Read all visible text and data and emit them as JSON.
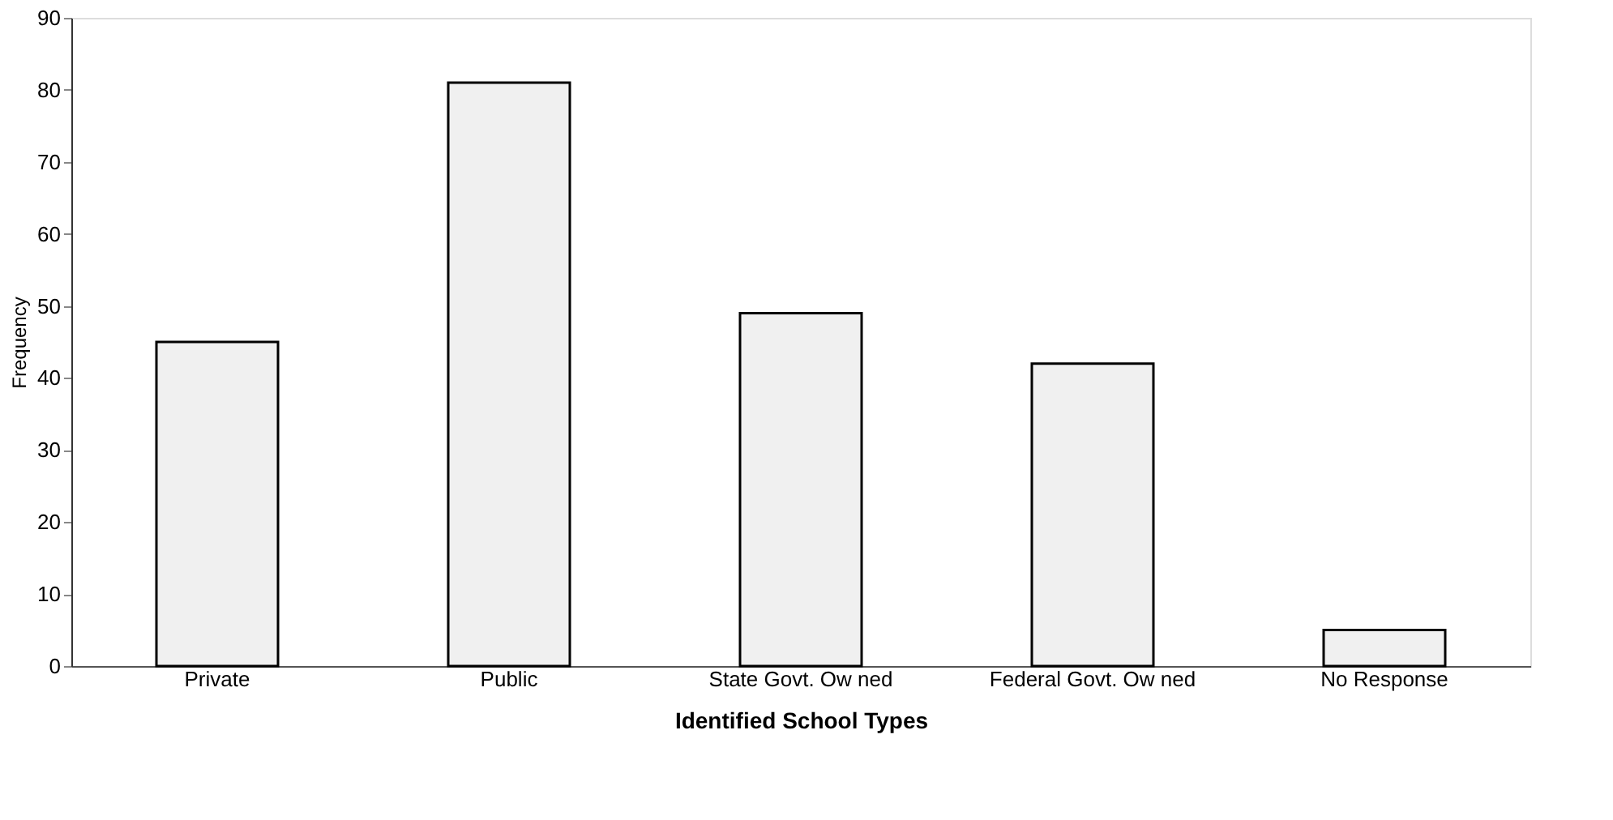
{
  "chart_data": {
    "type": "bar",
    "xlabel": "Identified School Types",
    "ylabel": "Frequency",
    "categories": [
      "Private",
      "Public",
      "State Govt. Ow ned",
      "Federal Govt. Ow ned",
      "No Response"
    ],
    "values": [
      45,
      81,
      49,
      42,
      5
    ],
    "color": "#f0f0f0",
    "ylim": [
      0,
      90
    ],
    "yticks": [
      0,
      10,
      20,
      30,
      40,
      50,
      60,
      70,
      80,
      90
    ],
    "grid": false
  }
}
